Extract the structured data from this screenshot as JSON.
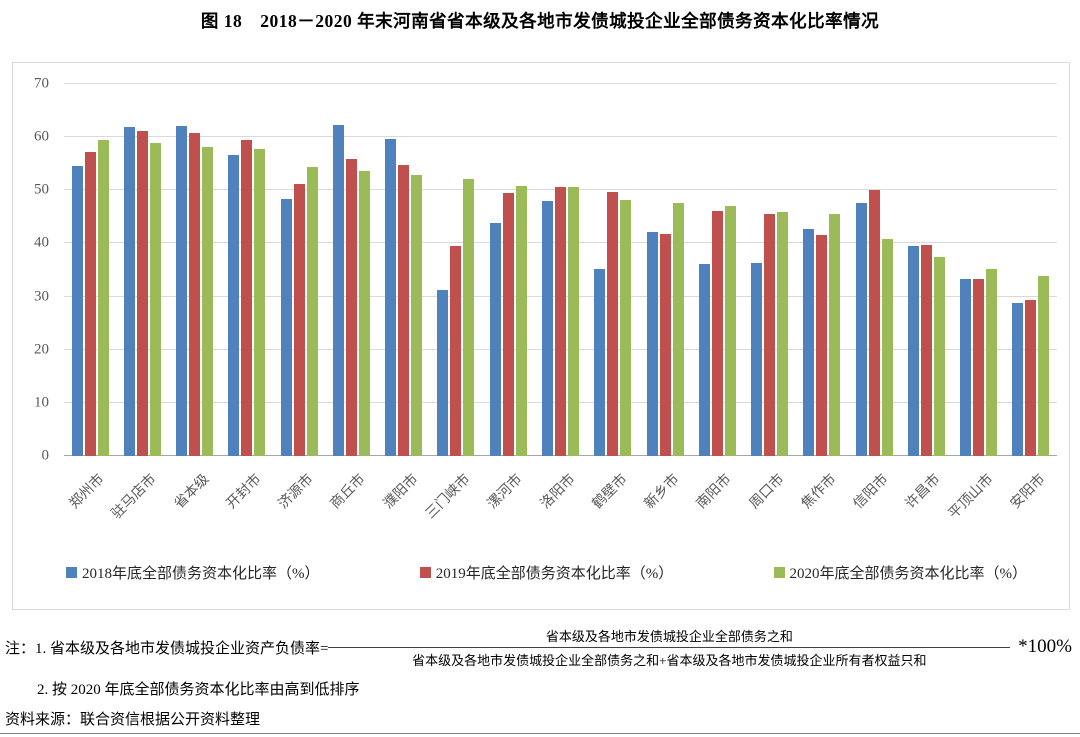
{
  "title": "图 18　2018－2020 年末河南省省本级及各地市发债城投企业全部债务资本化比率情况",
  "chart_data": {
    "type": "bar",
    "categories": [
      "郑州市",
      "驻马店市",
      "省本级",
      "开封市",
      "济源市",
      "商丘市",
      "濮阳市",
      "三门峡市",
      "漯河市",
      "洛阳市",
      "鹤壁市",
      "新乡市",
      "南阳市",
      "周口市",
      "焦作市",
      "信阳市",
      "许昌市",
      "平顶山市",
      "安阳市"
    ],
    "series": [
      {
        "name": "2018年底全部债务资本化比率（%）",
        "color": "#4F81BD",
        "values": [
          54.5,
          62.0,
          62.1,
          56.6,
          48.3,
          62.3,
          59.6,
          31.2,
          43.9,
          48.0,
          35.1,
          42.2,
          36.1,
          36.4,
          42.8,
          47.7,
          39.6,
          33.4,
          28.7
        ]
      },
      {
        "name": "2019年底全部债务资本化比率（%）",
        "color": "#C0504D",
        "values": [
          57.3,
          61.2,
          60.7,
          59.4,
          51.1,
          55.8,
          54.7,
          39.5,
          49.5,
          50.6,
          49.6,
          41.7,
          46.1,
          45.5,
          41.5,
          50.1,
          39.7,
          33.4,
          29.3
        ]
      },
      {
        "name": "2020年底全部债务资本化比率（%）",
        "color": "#9BBB59",
        "values": [
          59.5,
          58.9,
          58.2,
          57.7,
          54.3,
          53.6,
          52.8,
          52.1,
          50.9,
          50.7,
          48.2,
          47.7,
          47.0,
          46.0,
          45.6,
          40.8,
          37.4,
          35.2,
          33.8
        ]
      }
    ],
    "ylim": [
      0,
      70
    ],
    "ytick_step": 10,
    "grid": true,
    "legend_position": "bottom",
    "gridline_color": "#d9d9d9",
    "axis_color": "#a6a6a6"
  },
  "notes": {
    "note1_prefix": "注：1. 省本级及各地市发债城投企业资产负债率=",
    "fraction_numerator": "省本级及各地市发债城投企业全部债务之和",
    "fraction_denominator": "省本级及各地市发债城投企业全部债务之和+省本级及各地市发债城投企业所有者权益只和",
    "multiplier": "*100%",
    "note2": "2. 按 2020 年底全部债务资本化比率由高到低排序",
    "source": "资料来源：联合资信根据公开资料整理"
  }
}
